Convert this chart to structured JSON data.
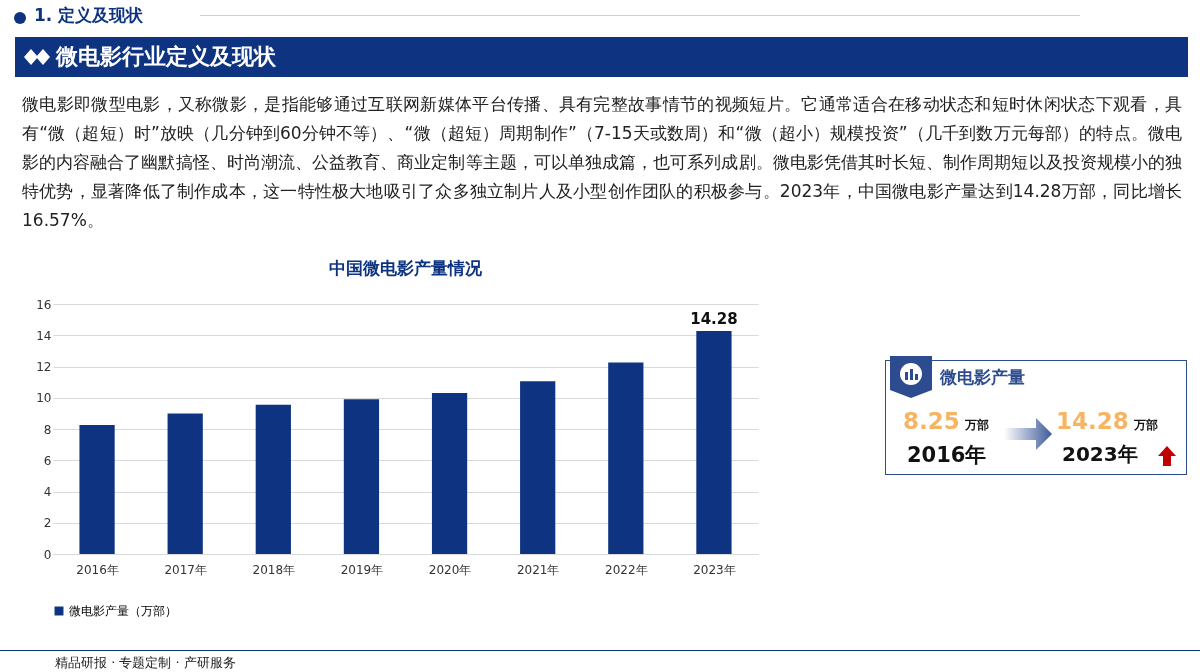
{
  "chart_data": {
    "type": "bar",
    "title": "中国微电影产量情况",
    "categories": [
      "2016年",
      "2017年",
      "2018年",
      "2019年",
      "2020年",
      "2021年",
      "2022年",
      "2023年"
    ],
    "series": [
      {
        "name": "微电影产量（万部）",
        "color": "#0e3481",
        "values": [
          8.25,
          9.0,
          9.55,
          9.9,
          10.3,
          11.05,
          12.25,
          14.28
        ],
        "value_labels": [
          null,
          null,
          null,
          null,
          null,
          null,
          null,
          "14.28"
        ]
      }
    ],
    "ylim": [
      0,
      16
    ],
    "yticks": [
      0,
      2,
      4,
      6,
      8,
      10,
      12,
      14,
      16
    ],
    "grid": "y",
    "legend": "bottom",
    "annotations": [
      "1. 定义及现状",
      "微电影行业定义及现状",
      "微电影即微型电影，又称微影，是指能够通过互联网新媒体平台传播、具有完整故事情节的视频短片。它通常适合在移动状态和短时休闲状态下观看，具有“微（超短）时”放映（几分钟到60分钟不等）、“微（超短）周期制作”（7-15天或数周）和“微（超小）规模投资”（几千到数万元每部）的特点。微电影的内容融合了幽默搞怪、时尚潮流、公益教育、商业定制等主题，可以单独成篇，也可系列成剧。微电影凭借其时长短、制作周期短以及投资规模小的独特优势，显著降低了制作成本，这一特性极大地吸引了众多独立制片人及小型创作团队的积极参与。2023年，中国微电影产量达到14.28万部，同比增长16.57%。",
      "微电影产量",
      "8.25",
      "万部",
      "2016年",
      "14.28",
      "万部",
      "2023年",
      "精品研报 · 专题定制 · 产研服务"
    ]
  }
}
